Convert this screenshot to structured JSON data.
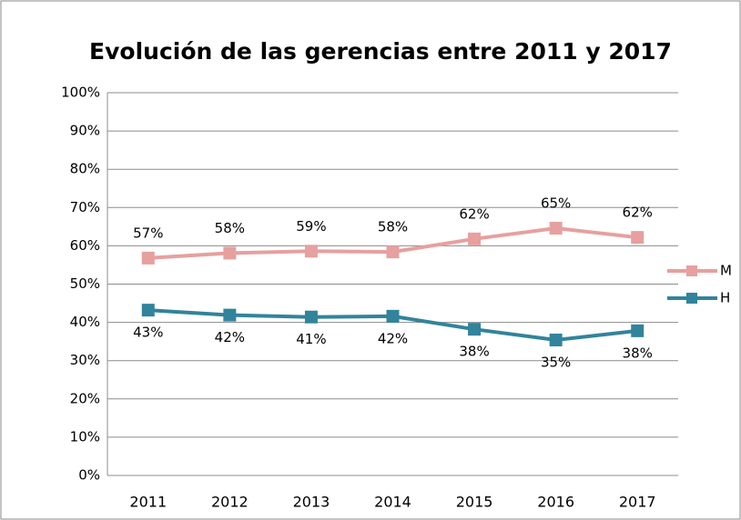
{
  "chart_data": {
    "type": "line",
    "title": "Evolución de las gerencias entre 2011 y 2017",
    "categories": [
      "2011",
      "2012",
      "2013",
      "2014",
      "2015",
      "2016",
      "2017"
    ],
    "series": [
      {
        "name": "M",
        "color": "#e6a09f",
        "values": [
          56.8,
          58.1,
          58.6,
          58.4,
          61.8,
          64.6,
          62.2
        ],
        "value_labels": [
          "57%",
          "58%",
          "59%",
          "58%",
          "62%",
          "65%",
          "62%"
        ]
      },
      {
        "name": "H",
        "color": "#31849b",
        "values": [
          43.2,
          41.9,
          41.4,
          41.6,
          38.2,
          35.4,
          37.8
        ],
        "value_labels": [
          "43%",
          "42%",
          "41%",
          "42%",
          "38%",
          "35%",
          "38%"
        ]
      }
    ],
    "ylim": [
      0,
      100
    ],
    "yticks": [
      {
        "value": 0,
        "label": "0%"
      },
      {
        "value": 10,
        "label": "10%"
      },
      {
        "value": 20,
        "label": "20%"
      },
      {
        "value": 30,
        "label": "30%"
      },
      {
        "value": 40,
        "label": "40%"
      },
      {
        "value": 50,
        "label": "50%"
      },
      {
        "value": 60,
        "label": "60%"
      },
      {
        "value": 70,
        "label": "70%"
      },
      {
        "value": 80,
        "label": "80%"
      },
      {
        "value": 90,
        "label": "90%"
      },
      {
        "value": 100,
        "label": "100%"
      }
    ],
    "grid": true,
    "legend": "right"
  }
}
